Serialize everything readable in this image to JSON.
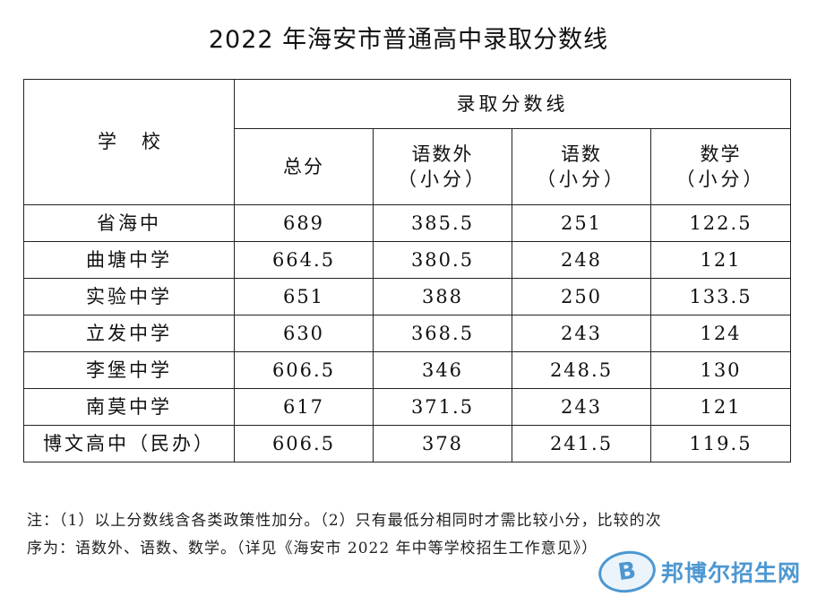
{
  "title": "2022 年海安市普通高中录取分数线",
  "table": {
    "school_header": "学校",
    "group_header": "录取分数线",
    "columns": [
      {
        "line1": "总分",
        "line2": ""
      },
      {
        "line1": "语数外",
        "line2": "（小分）"
      },
      {
        "line1": "语数",
        "line2": "（小分）"
      },
      {
        "line1": "数学",
        "line2": "（小分）"
      }
    ],
    "rows": [
      {
        "school": "省海中",
        "total": "689",
        "ysw": "385.5",
        "ys": "251",
        "math": "122.5"
      },
      {
        "school": "曲塘中学",
        "total": "664.5",
        "ysw": "380.5",
        "ys": "248",
        "math": "121"
      },
      {
        "school": "实验中学",
        "total": "651",
        "ysw": "388",
        "ys": "250",
        "math": "133.5"
      },
      {
        "school": "立发中学",
        "total": "630",
        "ysw": "368.5",
        "ys": "243",
        "math": "124"
      },
      {
        "school": "李堡中学",
        "total": "606.5",
        "ysw": "346",
        "ys": "248.5",
        "math": "130"
      },
      {
        "school": "南莫中学",
        "total": "617",
        "ysw": "371.5",
        "ys": "243",
        "math": "121"
      },
      {
        "school": "博文高中（民办）",
        "total": "606.5",
        "ysw": "378",
        "ys": "241.5",
        "math": "119.5"
      }
    ]
  },
  "note": {
    "line1": "注：（1）以上分数线含各类政策性加分。（2）只有最低分相同时才需比较小分，比较的次",
    "line2": "序为：语数外、语数、数学。（详见《海安市 2022 年中等学校招生工作意见》）"
  },
  "watermark": {
    "logo_letter": "B",
    "text": "邦博尔招生网"
  }
}
